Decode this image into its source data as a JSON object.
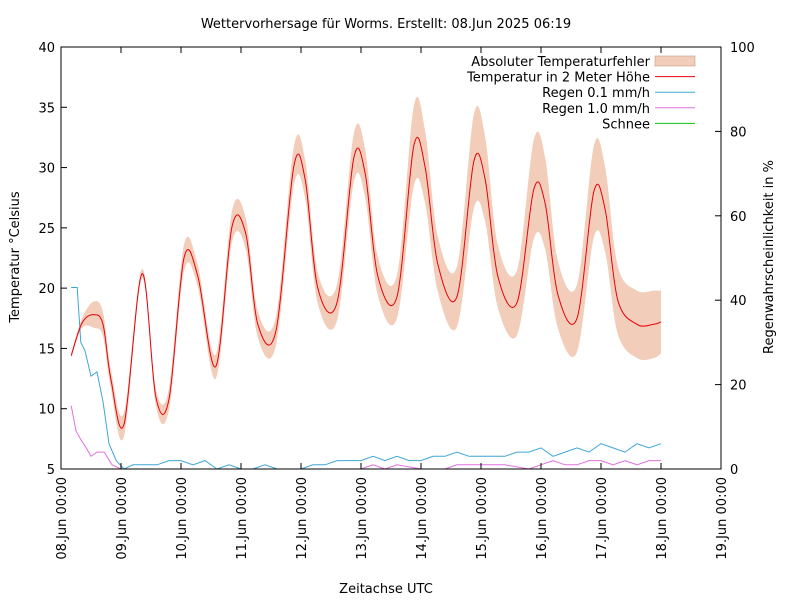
{
  "chart_data": {
    "type": "line",
    "title": "Wettervorhersage für Worms. Erstellt: 08.Jun 2025 06:19",
    "xlabel": "Zeitachse UTC",
    "ylabel": "Temperatur °Celsius",
    "y2label": "Regenwahrscheinlichkeit in %",
    "xlim": [
      0,
      11
    ],
    "ylim": [
      5,
      40
    ],
    "y2lim": [
      0,
      100
    ],
    "x_ticks": [
      "08.Jun 00:00",
      "09.Jun 00:00",
      "10.Jun 00:00",
      "11.Jun 00:00",
      "12.Jun 00:00",
      "13.Jun 00:00",
      "14.Jun 00:00",
      "15.Jun 00:00",
      "16.Jun 00:00",
      "17.Jun 00:00",
      "18.Jun 00:00",
      "19.Jun 00:00"
    ],
    "y_ticks": [
      5,
      10,
      15,
      20,
      25,
      30,
      35,
      40
    ],
    "y2_ticks": [
      0,
      20,
      40,
      60,
      80,
      100
    ],
    "legend_position": "top-right",
    "legend": [
      {
        "label": "Absoluter Temperaturfehler",
        "color": "#f2cdb9",
        "kind": "band"
      },
      {
        "label": "Temperatur in 2 Meter Höhe",
        "color": "#e8000b",
        "kind": "line"
      },
      {
        "label": "Regen 0.1 mm/h",
        "color": "#3ea6d6",
        "kind": "line"
      },
      {
        "label": "Regen 1.0 mm/h",
        "color": "#e070e0",
        "kind": "line"
      },
      {
        "label": "Schnee",
        "color": "#11c011",
        "kind": "line"
      }
    ],
    "temperature": {
      "name": "Temperatur in 2 Meter Höhe",
      "x": [
        0.17,
        0.35,
        0.55,
        0.7,
        0.83,
        1.05,
        1.35,
        1.58,
        1.8,
        2.05,
        2.28,
        2.58,
        2.85,
        3.08,
        3.28,
        3.58,
        3.88,
        4.07,
        4.28,
        4.6,
        4.88,
        5.07,
        5.28,
        5.6,
        5.88,
        6.07,
        6.28,
        6.6,
        6.88,
        7.07,
        7.28,
        7.6,
        7.88,
        8.07,
        8.28,
        8.6,
        8.88,
        9.07,
        9.28,
        9.6,
        9.88,
        10.0
      ],
      "y": [
        14.4,
        17.1,
        17.8,
        17.0,
        12.5,
        8.7,
        21.2,
        11.0,
        10.8,
        22.5,
        21.0,
        13.5,
        25.1,
        24.5,
        17.0,
        16.4,
        30.1,
        29.0,
        20.0,
        18.8,
        30.8,
        29.5,
        21.0,
        19.3,
        31.8,
        30.0,
        22.0,
        19.3,
        30.5,
        29.0,
        21.0,
        18.8,
        28.2,
        27.0,
        19.5,
        17.5,
        28.0,
        26.5,
        19.0,
        17.0,
        17.0,
        17.2
      ],
      "error": [
        0.2,
        0.4,
        1.1,
        1.0,
        0.8,
        1.0,
        0.4,
        0.7,
        0.9,
        1.1,
        0.9,
        1.0,
        1.3,
        1.3,
        1.1,
        1.2,
        1.6,
        1.6,
        1.3,
        1.5,
        2.0,
        2.0,
        1.6,
        1.8,
        3.3,
        3.0,
        2.3,
        2.5,
        3.9,
        3.5,
        2.6,
        2.7,
        4.1,
        3.8,
        2.8,
        2.8,
        3.8,
        3.5,
        2.8,
        2.8,
        2.8,
        2.6
      ]
    },
    "rain_01": {
      "name": "Regen 0.1 mm/h",
      "x": [
        0.17,
        0.27,
        0.33,
        0.4,
        0.5,
        0.6,
        0.7,
        0.8,
        0.92,
        1.05,
        1.2,
        1.4,
        1.6,
        1.8,
        2.0,
        2.2,
        2.4,
        2.6,
        2.8,
        3.0,
        3.2,
        3.4,
        3.6,
        3.8,
        4.0,
        4.2,
        4.4,
        4.6,
        4.8,
        5.0,
        5.2,
        5.4,
        5.6,
        5.8,
        6.0,
        6.2,
        6.4,
        6.6,
        6.8,
        7.0,
        7.2,
        7.4,
        7.6,
        7.8,
        8.0,
        8.2,
        8.4,
        8.6,
        8.8,
        9.0,
        9.2,
        9.4,
        9.6,
        9.8,
        10.0
      ],
      "y": [
        43,
        43,
        30,
        28,
        22,
        23,
        16,
        6,
        2,
        0,
        1,
        1,
        1,
        2,
        2,
        1,
        2,
        0,
        1,
        0,
        0,
        1,
        0,
        0,
        0,
        1,
        1,
        2,
        2,
        2,
        3,
        2,
        3,
        2,
        2,
        3,
        3,
        4,
        3,
        3,
        3,
        3,
        4,
        4,
        5,
        3,
        4,
        5,
        4,
        6,
        5,
        4,
        6,
        5,
        6
      ]
    },
    "rain_10": {
      "name": "Regen 1.0 mm/h",
      "x": [
        0.17,
        0.25,
        0.33,
        0.42,
        0.5,
        0.6,
        0.72,
        0.85,
        1.0,
        1.3,
        1.6,
        2.0,
        2.5,
        3.0,
        3.5,
        4.0,
        4.5,
        5.0,
        5.2,
        5.4,
        5.6,
        6.0,
        6.4,
        6.6,
        6.8,
        7.0,
        7.4,
        7.8,
        8.0,
        8.2,
        8.4,
        8.6,
        8.8,
        9.0,
        9.2,
        9.4,
        9.6,
        9.8,
        10.0
      ],
      "y": [
        15,
        9,
        7,
        5,
        3,
        4,
        4,
        1,
        0,
        0,
        0,
        0,
        0,
        0,
        0,
        0,
        0,
        0,
        1,
        0,
        1,
        0,
        0,
        1,
        1,
        1,
        1,
        0,
        1,
        2,
        1,
        1,
        2,
        2,
        1,
        2,
        1,
        2,
        2
      ]
    },
    "snow": {
      "name": "Schnee",
      "x": [],
      "y": []
    }
  }
}
